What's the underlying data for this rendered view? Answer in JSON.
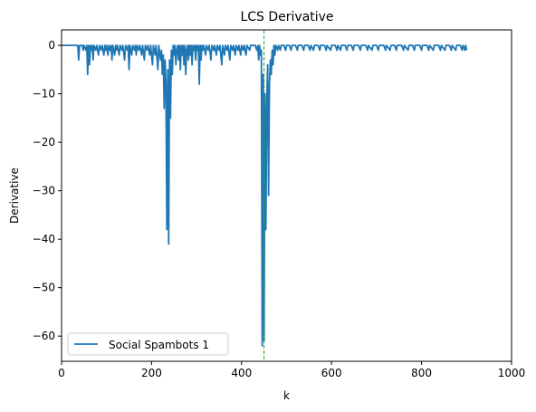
{
  "chart_data": {
    "type": "line",
    "title": "LCS Derivative",
    "xlabel": "k",
    "ylabel": "Derivative",
    "xlim": [
      0,
      1000
    ],
    "ylim": [
      -65.2,
      3.2
    ],
    "xticks": [
      0,
      200,
      400,
      600,
      800,
      1000
    ],
    "yticks": [
      0,
      -10,
      -20,
      -30,
      -40,
      -50,
      -60
    ],
    "grid": false,
    "legend": "lower-left",
    "vline": {
      "x": 450,
      "color": "#2ca02c",
      "style": "dashed"
    },
    "series": [
      {
        "name": "Social Spambots 1",
        "color": "#1f77b4",
        "points": [
          [
            0,
            0
          ],
          [
            30,
            0
          ],
          [
            36,
            0
          ],
          [
            38,
            -3
          ],
          [
            40,
            0
          ],
          [
            46,
            0
          ],
          [
            48,
            -1
          ],
          [
            50,
            0
          ],
          [
            54,
            -1
          ],
          [
            56,
            0
          ],
          [
            58,
            -6
          ],
          [
            60,
            0
          ],
          [
            62,
            -4
          ],
          [
            64,
            0
          ],
          [
            66,
            -1
          ],
          [
            68,
            0
          ],
          [
            70,
            -3
          ],
          [
            72,
            0
          ],
          [
            76,
            -1
          ],
          [
            78,
            0
          ],
          [
            82,
            -2
          ],
          [
            84,
            0
          ],
          [
            88,
            -1
          ],
          [
            90,
            0
          ],
          [
            94,
            -2
          ],
          [
            96,
            0
          ],
          [
            98,
            -1
          ],
          [
            100,
            0
          ],
          [
            103,
            -2
          ],
          [
            105,
            0
          ],
          [
            108,
            -1
          ],
          [
            110,
            0
          ],
          [
            112,
            -3
          ],
          [
            114,
            0
          ],
          [
            118,
            -2
          ],
          [
            120,
            0
          ],
          [
            122,
            -1
          ],
          [
            124,
            0
          ],
          [
            128,
            -2
          ],
          [
            130,
            0
          ],
          [
            134,
            -1
          ],
          [
            136,
            0
          ],
          [
            140,
            -3
          ],
          [
            142,
            0
          ],
          [
            146,
            -1
          ],
          [
            148,
            0
          ],
          [
            150,
            -5
          ],
          [
            152,
            0
          ],
          [
            156,
            -2
          ],
          [
            158,
            0
          ],
          [
            162,
            -1
          ],
          [
            164,
            0
          ],
          [
            166,
            -2
          ],
          [
            168,
            0
          ],
          [
            172,
            -1
          ],
          [
            174,
            0
          ],
          [
            178,
            -2
          ],
          [
            180,
            0
          ],
          [
            184,
            -3
          ],
          [
            186,
            0
          ],
          [
            190,
            -1
          ],
          [
            192,
            0
          ],
          [
            196,
            -2
          ],
          [
            198,
            0
          ],
          [
            202,
            -4
          ],
          [
            204,
            0
          ],
          [
            208,
            -2
          ],
          [
            210,
            0
          ],
          [
            214,
            -5
          ],
          [
            216,
            0
          ],
          [
            220,
            -3
          ],
          [
            222,
            -1
          ],
          [
            224,
            -6
          ],
          [
            226,
            -2
          ],
          [
            228,
            -13
          ],
          [
            230,
            -3
          ],
          [
            232,
            -8
          ],
          [
            234,
            -38
          ],
          [
            236,
            -5
          ],
          [
            238,
            -41
          ],
          [
            240,
            -3
          ],
          [
            242,
            -15
          ],
          [
            244,
            -1
          ],
          [
            246,
            -6
          ],
          [
            248,
            0
          ],
          [
            250,
            -2
          ],
          [
            252,
            0
          ],
          [
            254,
            -4
          ],
          [
            256,
            -1
          ],
          [
            258,
            0
          ],
          [
            260,
            -3
          ],
          [
            262,
            0
          ],
          [
            264,
            -5
          ],
          [
            266,
            0
          ],
          [
            268,
            -2
          ],
          [
            270,
            0
          ],
          [
            272,
            -4
          ],
          [
            274,
            0
          ],
          [
            276,
            -6
          ],
          [
            278,
            -1
          ],
          [
            280,
            0
          ],
          [
            282,
            -3
          ],
          [
            284,
            0
          ],
          [
            286,
            -2
          ],
          [
            288,
            0
          ],
          [
            290,
            -4
          ],
          [
            292,
            0
          ],
          [
            294,
            -1
          ],
          [
            296,
            0
          ],
          [
            298,
            -3
          ],
          [
            300,
            0
          ],
          [
            302,
            -1
          ],
          [
            304,
            0
          ],
          [
            306,
            -8
          ],
          [
            308,
            0
          ],
          [
            310,
            -3
          ],
          [
            312,
            0
          ],
          [
            314,
            -1
          ],
          [
            316,
            0
          ],
          [
            320,
            -2
          ],
          [
            322,
            0
          ],
          [
            326,
            -1
          ],
          [
            328,
            0
          ],
          [
            332,
            -3
          ],
          [
            334,
            0
          ],
          [
            338,
            -1
          ],
          [
            340,
            0
          ],
          [
            344,
            -2
          ],
          [
            346,
            0
          ],
          [
            350,
            -1
          ],
          [
            352,
            0
          ],
          [
            356,
            -4
          ],
          [
            358,
            0
          ],
          [
            362,
            -2
          ],
          [
            364,
            0
          ],
          [
            368,
            -1
          ],
          [
            370,
            0
          ],
          [
            374,
            -3
          ],
          [
            376,
            0
          ],
          [
            380,
            -1
          ],
          [
            382,
            0
          ],
          [
            386,
            -2
          ],
          [
            388,
            0
          ],
          [
            392,
            -1
          ],
          [
            394,
            0
          ],
          [
            398,
            -2
          ],
          [
            400,
            0
          ],
          [
            404,
            -1
          ],
          [
            406,
            0
          ],
          [
            410,
            -2
          ],
          [
            412,
            0
          ],
          [
            418,
            -1
          ],
          [
            420,
            0
          ],
          [
            430,
            0
          ],
          [
            434,
            -1
          ],
          [
            436,
            0
          ],
          [
            438,
            -3
          ],
          [
            440,
            0
          ],
          [
            442,
            -2
          ],
          [
            444,
            -1
          ],
          [
            446,
            -62
          ],
          [
            448,
            -6
          ],
          [
            450,
            -61
          ],
          [
            452,
            -10
          ],
          [
            454,
            -38
          ],
          [
            456,
            -12
          ],
          [
            458,
            -4
          ],
          [
            460,
            -31
          ],
          [
            462,
            -8
          ],
          [
            464,
            -3
          ],
          [
            466,
            -6
          ],
          [
            468,
            -1
          ],
          [
            470,
            -4
          ],
          [
            472,
            0
          ],
          [
            474,
            -2
          ],
          [
            476,
            0
          ],
          [
            480,
            -1
          ],
          [
            482,
            0
          ],
          [
            486,
            -1
          ],
          [
            488,
            0
          ],
          [
            494,
            0
          ],
          [
            498,
            -1
          ],
          [
            500,
            0
          ],
          [
            506,
            0
          ],
          [
            510,
            -1
          ],
          [
            512,
            0
          ],
          [
            520,
            0
          ],
          [
            524,
            -1
          ],
          [
            526,
            0
          ],
          [
            534,
            0
          ],
          [
            538,
            -1
          ],
          [
            540,
            0
          ],
          [
            548,
            0
          ],
          [
            552,
            -1
          ],
          [
            554,
            0
          ],
          [
            560,
            -1
          ],
          [
            562,
            0
          ],
          [
            570,
            0
          ],
          [
            574,
            -1
          ],
          [
            576,
            0
          ],
          [
            584,
            0
          ],
          [
            588,
            -1
          ],
          [
            590,
            0
          ],
          [
            598,
            -1
          ],
          [
            600,
            0
          ],
          [
            608,
            0
          ],
          [
            612,
            -1
          ],
          [
            614,
            0
          ],
          [
            620,
            -1
          ],
          [
            622,
            0
          ],
          [
            630,
            0
          ],
          [
            634,
            -1
          ],
          [
            636,
            0
          ],
          [
            644,
            0
          ],
          [
            648,
            -1
          ],
          [
            650,
            0
          ],
          [
            660,
            0
          ],
          [
            664,
            -1
          ],
          [
            666,
            0
          ],
          [
            676,
            0
          ],
          [
            680,
            -1
          ],
          [
            682,
            0
          ],
          [
            690,
            -1
          ],
          [
            692,
            0
          ],
          [
            700,
            0
          ],
          [
            704,
            -1
          ],
          [
            706,
            0
          ],
          [
            716,
            0
          ],
          [
            720,
            -1
          ],
          [
            722,
            0
          ],
          [
            730,
            -1
          ],
          [
            732,
            0
          ],
          [
            740,
            0
          ],
          [
            744,
            -1
          ],
          [
            746,
            0
          ],
          [
            756,
            0
          ],
          [
            760,
            -1
          ],
          [
            762,
            0
          ],
          [
            770,
            -1
          ],
          [
            772,
            0
          ],
          [
            780,
            0
          ],
          [
            784,
            -1
          ],
          [
            786,
            0
          ],
          [
            796,
            0
          ],
          [
            800,
            -1
          ],
          [
            802,
            0
          ],
          [
            812,
            0
          ],
          [
            816,
            -1
          ],
          [
            818,
            0
          ],
          [
            826,
            -1
          ],
          [
            828,
            0
          ],
          [
            838,
            0
          ],
          [
            842,
            -1
          ],
          [
            844,
            0
          ],
          [
            852,
            -1
          ],
          [
            854,
            0
          ],
          [
            862,
            0
          ],
          [
            866,
            -1
          ],
          [
            868,
            0
          ],
          [
            876,
            -1
          ],
          [
            878,
            0
          ],
          [
            886,
            0
          ],
          [
            890,
            -1
          ],
          [
            892,
            0
          ],
          [
            896,
            -1
          ],
          [
            898,
            0
          ],
          [
            900,
            -1
          ]
        ]
      }
    ]
  }
}
